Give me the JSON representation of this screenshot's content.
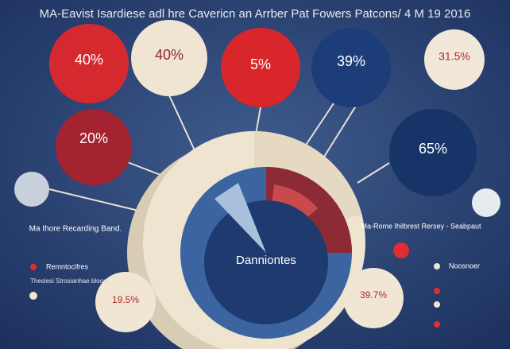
{
  "header": {
    "title": "MA-Eavist Isardiese adl hre Cavericn an Arrber Pat Fowers Patcons/ 4 M 19 2016"
  },
  "bubbles": [
    {
      "label": "40%"
    },
    {
      "label": "40%"
    },
    {
      "label": "5%"
    },
    {
      "label": "39%"
    },
    {
      "label": "31.5%"
    },
    {
      "label": "20%"
    },
    {
      "label": "65%"
    },
    {
      "label": "19.5%"
    },
    {
      "label": "39.7%"
    }
  ],
  "center": {
    "label": "Danniontes"
  },
  "notes": {
    "left": "Ma Ihore Recarding Band.",
    "right": "Ma-Rome Ihilbrest Rersey - Seabpaut"
  },
  "legend_left": [
    "Remntocifres",
    "Theslesi Strosianhae bloons"
  ],
  "legend_right": [
    "Noosnoer"
  ]
}
